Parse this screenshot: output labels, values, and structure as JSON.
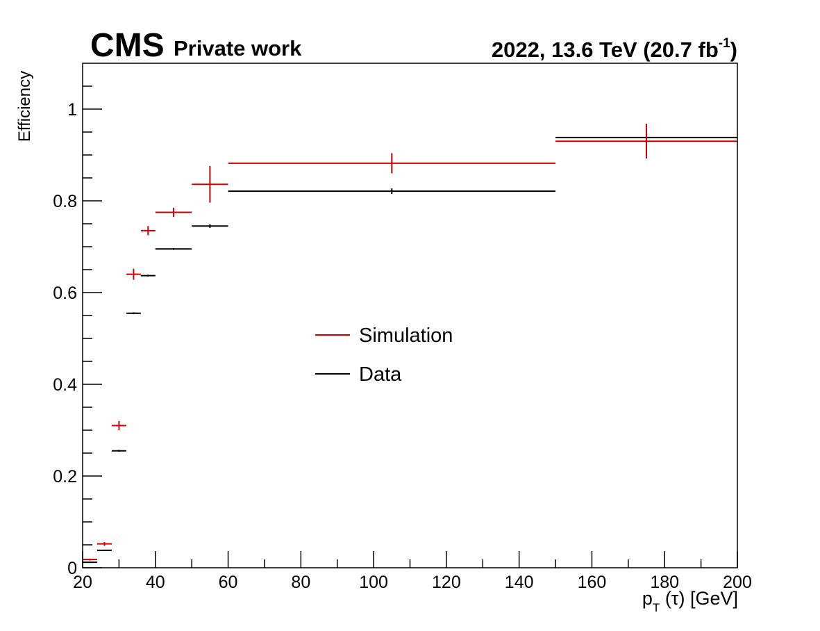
{
  "header": {
    "experiment": "CMS",
    "extra_text": "Private work",
    "lumi_prefix": "2022, 13.6 TeV (20.7 fb",
    "lumi_exponent": "-1",
    "lumi_suffix": ")"
  },
  "axes": {
    "ylabel": "Efficiency",
    "xlabel_main": "p",
    "xlabel_sub": "T",
    "xlabel_rest": " (τ) [GeV]"
  },
  "chart_data": {
    "type": "scatter",
    "xlim": [
      20,
      200
    ],
    "ylim": [
      0,
      1.1
    ],
    "x_ticks": [
      "20",
      "40",
      "60",
      "80",
      "100",
      "120",
      "140",
      "160",
      "180",
      "200"
    ],
    "y_ticks": [
      "0",
      "0.2",
      "0.4",
      "0.6",
      "0.8",
      "1"
    ],
    "legend_position": "center",
    "series": [
      {
        "name": "Simulation",
        "color": "#cc0000",
        "points": [
          {
            "x_low": 20,
            "x_high": 24,
            "y": 0.018,
            "y_err": 0.002
          },
          {
            "x_low": 24,
            "x_high": 28,
            "y": 0.052,
            "y_err": 0.004
          },
          {
            "x_low": 28,
            "x_high": 32,
            "y": 0.31,
            "y_err": 0.01
          },
          {
            "x_low": 32,
            "x_high": 36,
            "y": 0.64,
            "y_err": 0.012
          },
          {
            "x_low": 36,
            "x_high": 40,
            "y": 0.735,
            "y_err": 0.01
          },
          {
            "x_low": 40,
            "x_high": 50,
            "y": 0.775,
            "y_err": 0.01
          },
          {
            "x_low": 50,
            "x_high": 60,
            "y": 0.836,
            "y_err": 0.04
          },
          {
            "x_low": 60,
            "x_high": 150,
            "y": 0.882,
            "y_err": 0.022
          },
          {
            "x_low": 150,
            "x_high": 200,
            "y": 0.93,
            "y_err": 0.038
          }
        ]
      },
      {
        "name": "Data",
        "color": "#000000",
        "points": [
          {
            "x_low": 20,
            "x_high": 24,
            "y": 0.012,
            "y_err": 0.001
          },
          {
            "x_low": 24,
            "x_high": 28,
            "y": 0.038,
            "y_err": 0.001
          },
          {
            "x_low": 28,
            "x_high": 32,
            "y": 0.255,
            "y_err": 0.002
          },
          {
            "x_low": 32,
            "x_high": 36,
            "y": 0.555,
            "y_err": 0.002
          },
          {
            "x_low": 36,
            "x_high": 40,
            "y": 0.637,
            "y_err": 0.002
          },
          {
            "x_low": 40,
            "x_high": 50,
            "y": 0.695,
            "y_err": 0.002
          },
          {
            "x_low": 50,
            "x_high": 60,
            "y": 0.745,
            "y_err": 0.004
          },
          {
            "x_low": 60,
            "x_high": 150,
            "y": 0.821,
            "y_err": 0.006
          },
          {
            "x_low": 150,
            "x_high": 200,
            "y": 0.938,
            "y_err": 0.004
          }
        ]
      }
    ]
  }
}
